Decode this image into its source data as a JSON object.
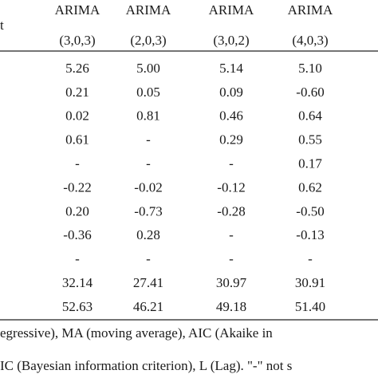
{
  "table": {
    "stub_header": "t",
    "columns": [
      {
        "model": "ARIMA",
        "order": "(3,0,3)"
      },
      {
        "model": "ARIMA",
        "order": "(2,0,3)"
      },
      {
        "model": "ARIMA",
        "order": "(3,0,2)"
      },
      {
        "model": "ARIMA",
        "order": "(4,0,3)"
      }
    ],
    "rows": [
      [
        "5.26",
        "5.00",
        "5.14",
        "5.10"
      ],
      [
        "0.21",
        "0.05",
        "0.09",
        "-0.60"
      ],
      [
        "0.02",
        "0.81",
        "0.46",
        "0.64"
      ],
      [
        "0.61",
        "-",
        "0.29",
        "0.55"
      ],
      [
        "-",
        "-",
        "-",
        "0.17"
      ],
      [
        "-0.22",
        "-0.02",
        "-0.12",
        "0.62"
      ],
      [
        "0.20",
        "-0.73",
        "-0.28",
        "-0.50"
      ],
      [
        "-0.36",
        "0.28",
        "-",
        "-0.13"
      ],
      [
        "-",
        "-",
        "-",
        "-"
      ],
      [
        "32.14",
        "27.41",
        "30.97",
        "30.91"
      ],
      [
        "52.63",
        "46.21",
        "49.18",
        "51.40"
      ]
    ]
  },
  "footnote": {
    "lines": [
      "egressive), MA (moving average), AIC (Akaike in",
      "IC (Bayesian information criterion), L (Lag). \"-\" not s"
    ]
  }
}
